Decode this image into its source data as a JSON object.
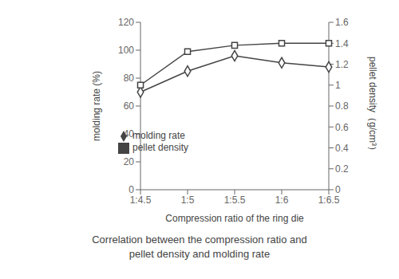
{
  "chart_data": {
    "type": "line",
    "title": "Correlation between the compression ratio and",
    "subtitle": "pellet density and molding rate",
    "xlabel": "Compression ratio of the ring die",
    "ylabel": "molding rate (%)",
    "y2label": "pellet density（g/cm³）",
    "categories": [
      "1:4.5",
      "1:5",
      "1:5.5",
      "1:6",
      "1:6.5"
    ],
    "series": [
      {
        "name": "molding rate",
        "color": "#444444",
        "marker": "diamond",
        "values": [
          70,
          85,
          96,
          91,
          88
        ]
      },
      {
        "name": "pellet density",
        "color": "#444444",
        "marker": "square",
        "axis": "y2",
        "values": [
          1.0,
          1.32,
          1.38,
          1.4,
          1.4
        ]
      }
    ],
    "ylim": [
      0,
      120
    ],
    "yticks": [
      0,
      20,
      40,
      60,
      80,
      100,
      120
    ],
    "y2lim": [
      0,
      1.6
    ],
    "y2ticks": [
      0,
      0.2,
      0.4,
      0.6,
      0.8,
      1.0,
      1.2,
      1.4,
      1.6
    ],
    "legend": "bottom",
    "grid": false
  }
}
